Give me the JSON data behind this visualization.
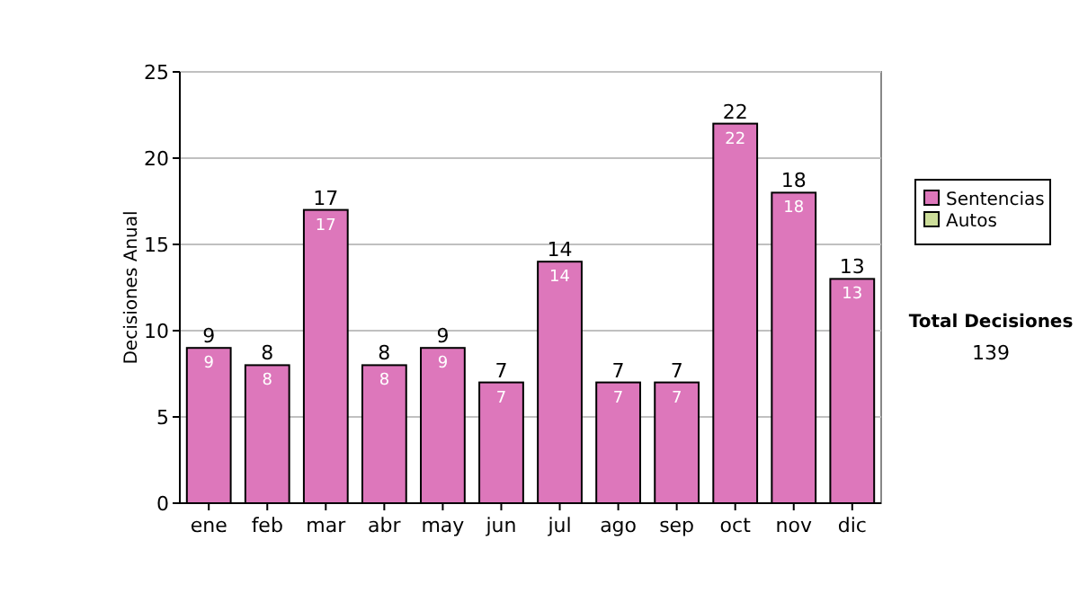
{
  "chart_data": {
    "type": "bar",
    "stacked": true,
    "ylabel": "Decisiones Anual",
    "categories": [
      "ene",
      "feb",
      "mar",
      "abr",
      "may",
      "jun",
      "jul",
      "ago",
      "sep",
      "oct",
      "nov",
      "dic"
    ],
    "series": [
      {
        "name": "Sentencias",
        "color": "#dd77bb",
        "values": [
          9,
          8,
          17,
          8,
          9,
          7,
          14,
          7,
          7,
          22,
          18,
          13
        ],
        "value_labels": [
          "9",
          "8",
          "17",
          "8",
          "9",
          "7",
          "14",
          "7",
          "7",
          "22",
          "18",
          "13"
        ]
      },
      {
        "name": "Autos",
        "color": "#ccdd99",
        "values": [
          0,
          0,
          0,
          0,
          0,
          0,
          0,
          0,
          0,
          0,
          0,
          0
        ]
      }
    ],
    "totals": [
      "9",
      "8",
      "17",
      "8",
      "9",
      "7",
      "14",
      "7",
      "7",
      "22",
      "18",
      "13"
    ],
    "ylim": [
      0,
      25
    ],
    "yticks": [
      0,
      5,
      10,
      15,
      20,
      25
    ],
    "grid": "y",
    "legend": "right",
    "annotations": [
      "Total Decisiones",
      "139"
    ]
  }
}
